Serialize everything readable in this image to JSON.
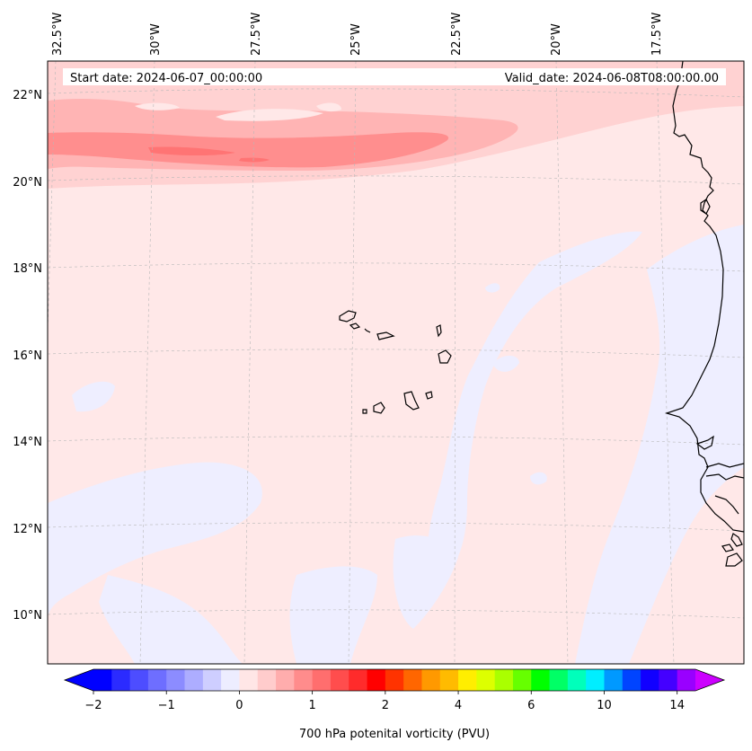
{
  "chart_data": {
    "type": "map-contour",
    "header": {
      "start_date": "Start date: 2024-06-07_00:00:00",
      "valid_date": "Valid_date: 2024-06-08T08:00:00.00"
    },
    "lon_labels": [
      "32.5°W",
      "30°W",
      "27.5°W",
      "25°W",
      "22.5°W",
      "20°W",
      "17.5°W"
    ],
    "lat_labels": [
      "22°N",
      "20°N",
      "18°N",
      "16°N",
      "14°N",
      "12°N",
      "10°N"
    ],
    "colorbar": {
      "label": "700 hPa potenital vorticity (PVU)",
      "tick_labels": [
        "−2",
        "−1",
        "0",
        "1",
        "2",
        "4",
        "6",
        "10",
        "14"
      ],
      "range": [
        -2,
        15
      ],
      "extend": "both",
      "colors": [
        "#0000ff",
        "#2b2bff",
        "#4d4dff",
        "#6e6eff",
        "#8c8cff",
        "#adadff",
        "#ceceff",
        "#ededff",
        "#ffe6e6",
        "#ffcccc",
        "#ffadad",
        "#ff8c8c",
        "#ff6e6e",
        "#ff4d4d",
        "#ff2b2b",
        "#ff0000",
        "#ff3300",
        "#ff6600",
        "#ff9900",
        "#ffbb00",
        "#ffee00",
        "#ddff00",
        "#aaff00",
        "#66ff00",
        "#00ff00",
        "#00ff66",
        "#00ffbb",
        "#00eeff",
        "#0099ff",
        "#0044ff",
        "#1100ff",
        "#4400ff",
        "#9900ff"
      ],
      "under_color": "#0000ff",
      "over_color": "#cc00ff"
    },
    "field": {
      "background_level_color": "#ffe8e8",
      "negative_patch_color": "#eeeeff",
      "band_colors": [
        "#ffcccc",
        "#ffb0b0",
        "#ff8c8c",
        "#ff6e6e"
      ],
      "description_levels": [
        "0 to 0.25 PVU background",
        "0.25–1 PVU zonal band near 20–21.5°N"
      ]
    },
    "coastline_color": "#000000"
  }
}
